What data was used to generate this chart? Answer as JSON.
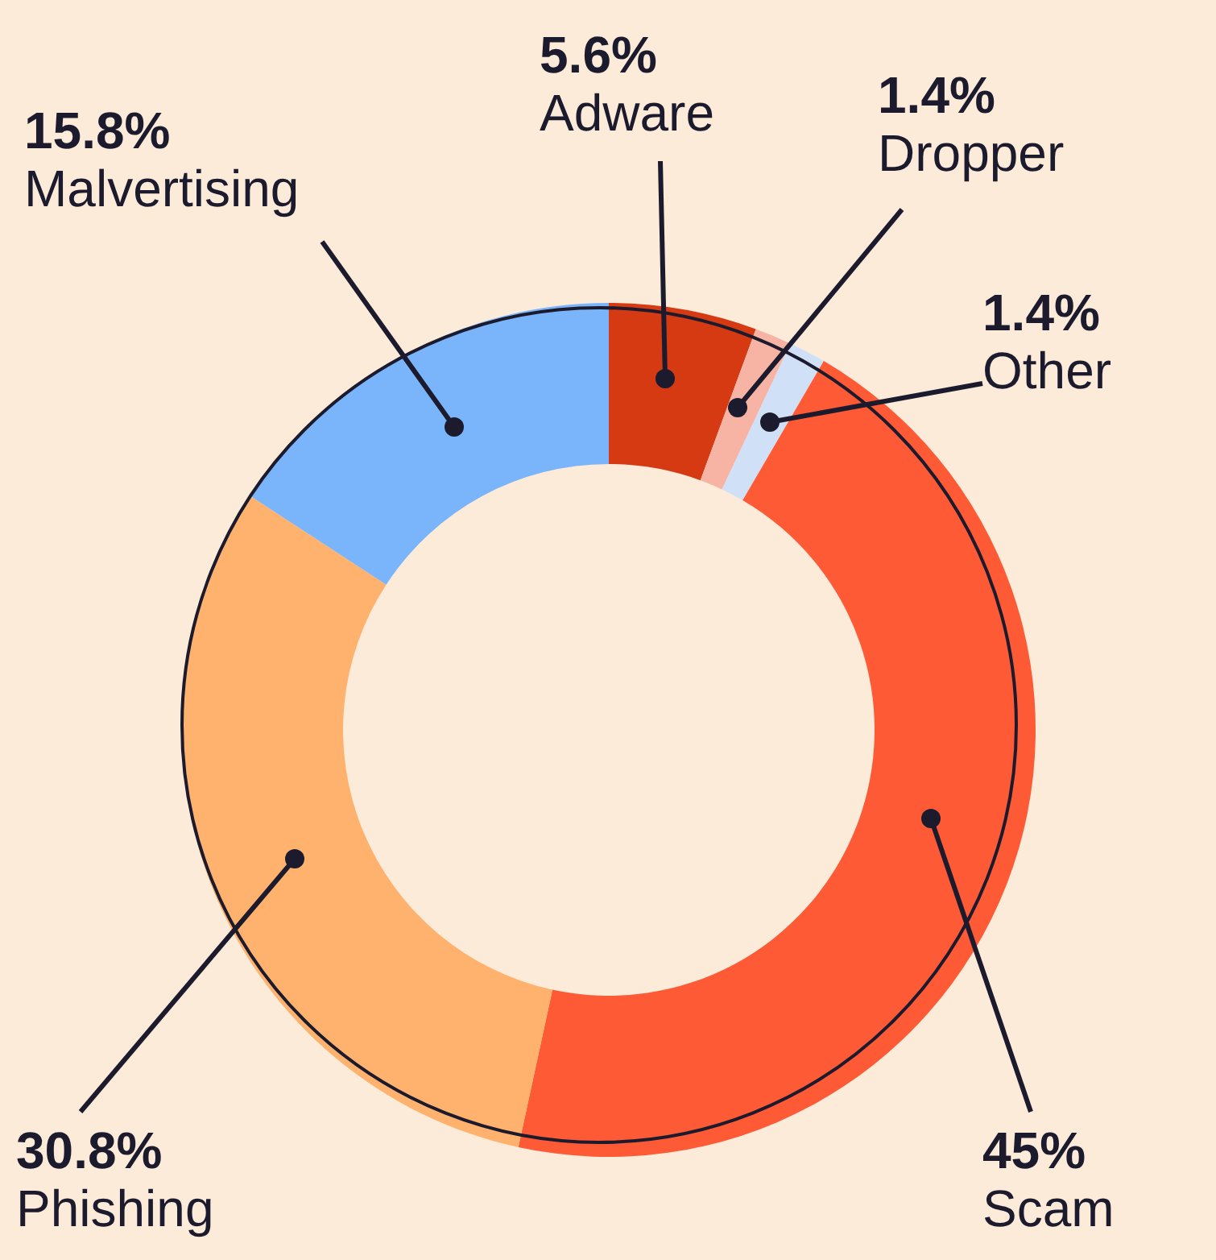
{
  "chart_data": {
    "type": "donut",
    "categories": [
      "Adware",
      "Dropper",
      "Other",
      "Scam",
      "Phishing",
      "Malvertising"
    ],
    "values": [
      5.6,
      1.4,
      1.4,
      45,
      30.8,
      15.8
    ],
    "value_labels": [
      "5.6%",
      "1.4%",
      "1.4%",
      "45%",
      "30.8%",
      "15.8%"
    ],
    "colors": [
      "#d63a12",
      "#f7b3a3",
      "#cfe0f7",
      "#ff5a36",
      "#ffb26e",
      "#7ab4fb"
    ]
  }
}
